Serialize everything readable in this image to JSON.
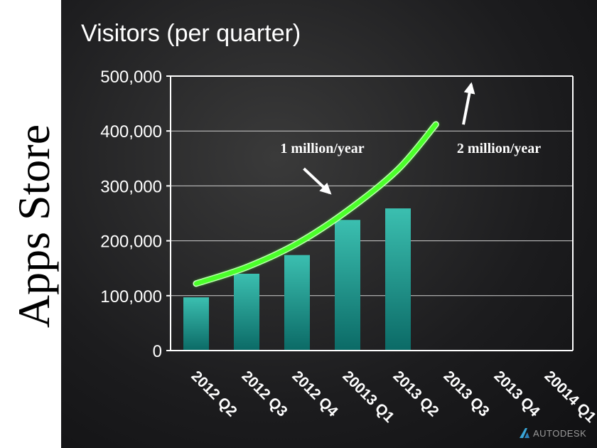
{
  "side_title": "Apps Store",
  "brand": {
    "name": "AUTODESK"
  },
  "colors": {
    "bar_top": "#3bbfb0",
    "bar_bottom": "#0b6a66",
    "trend_line": "#4cff2a",
    "axis": "#ffffff",
    "grid": "#cfcfcf",
    "panel": "#1c1c1e"
  },
  "chart_data": {
    "type": "bar",
    "title": "Visitors (per quarter)",
    "categories": [
      "2012 Q2",
      "2012 Q3",
      "2012 Q4",
      "20013 Q1",
      "2013 Q2",
      "2013 Q3",
      "2013 Q4",
      "20014 Q1"
    ],
    "values": [
      97000,
      140000,
      174000,
      238000,
      259000,
      null,
      null,
      null
    ],
    "ylim": [
      0,
      500000
    ],
    "y_ticks": [
      0,
      100000,
      200000,
      300000,
      400000,
      500000
    ],
    "y_tick_labels": [
      "0",
      "100,000",
      "200,000",
      "300,000",
      "400,000",
      "500,000"
    ],
    "grid": true,
    "trend": {
      "x": [
        0,
        1,
        2,
        3,
        4,
        4.75
      ],
      "y": [
        122000,
        152000,
        195000,
        255000,
        330000,
        412000
      ]
    },
    "annotations": [
      {
        "text": "1 million/year",
        "category_index": 2.5,
        "y": 360000,
        "arrow_to_index": 2.65,
        "arrow_to_y": 287000
      },
      {
        "text": "2 million/year",
        "category_index": 6.0,
        "y": 360000,
        "arrow_to_index": 5.45,
        "arrow_to_y": 485000
      }
    ]
  }
}
